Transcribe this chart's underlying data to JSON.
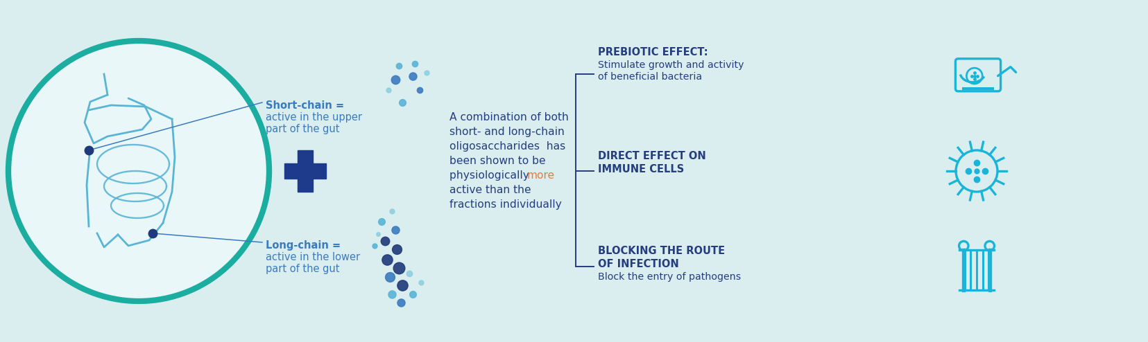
{
  "bg_color": "#daeef0",
  "circle_bg": "#eaf7f8",
  "circle_border": "#1aada0",
  "blue_dark": "#253d7f",
  "blue_mid": "#3a7bbf",
  "blue_light": "#5ab4d6",
  "blue_pale": "#90cfe0",
  "cyan_bright": "#1ab4d8",
  "orange_text": "#e8783c",
  "navy": "#1e3a7a",
  "plus_color": "#1e3a8a",
  "short_chain_label_1": "Short-chain =",
  "short_chain_label_2": "active in the upper",
  "short_chain_label_3": "part of the gut",
  "long_chain_label_1": "Long-chain =",
  "long_chain_label_2": "active in the lower",
  "long_chain_label_3": "part of the gut",
  "combo_lines": [
    "A combination of both",
    "short- and long-chain",
    "oligosaccharides  has",
    "been shown to be",
    "active than the",
    "fractions individually"
  ],
  "combo_phys": "physiologically ",
  "combo_more": "more",
  "effect1_title": "PREBIOTIC EFFECT:",
  "effect1_body_1": "Stimulate growth and activity",
  "effect1_body_2": "of beneficial bacteria",
  "effect2_title_1": "DIRECT EFFECT ON",
  "effect2_title_2": "IMMUNE CELLS",
  "effect3_title_1": "BLOCKING THE ROUTE",
  "effect3_title_2": "OF INFECTION",
  "effect3_body": "Block the entry of pathogens",
  "figsize": [
    16.55,
    4.94
  ],
  "dpi": 100
}
